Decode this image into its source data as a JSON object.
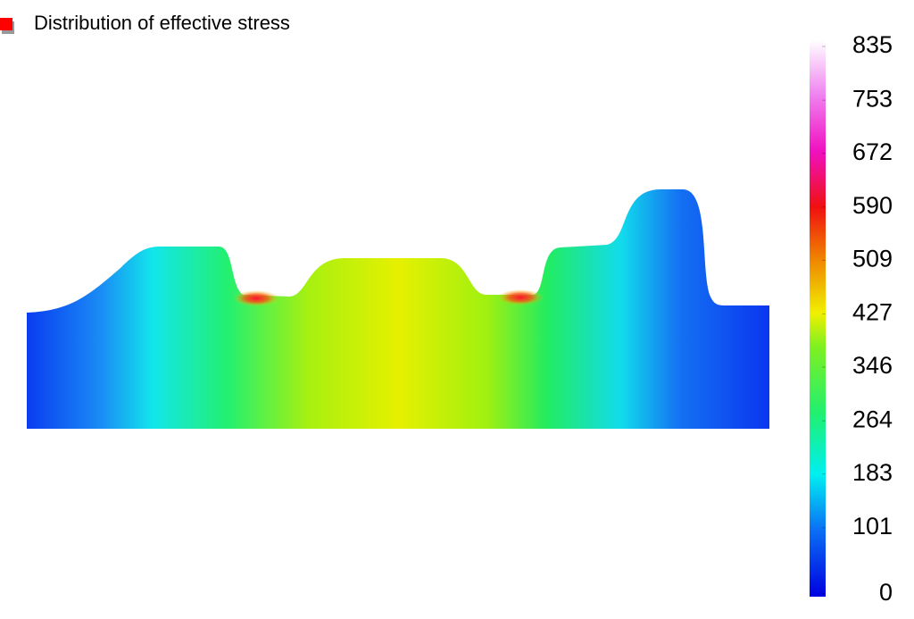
{
  "legend": {
    "label": "Distribution of effective stress"
  },
  "colorbar": {
    "range": [
      0,
      835
    ],
    "ticks": [
      0,
      101,
      183,
      264,
      346,
      427,
      509,
      590,
      672,
      753,
      835
    ]
  }
}
